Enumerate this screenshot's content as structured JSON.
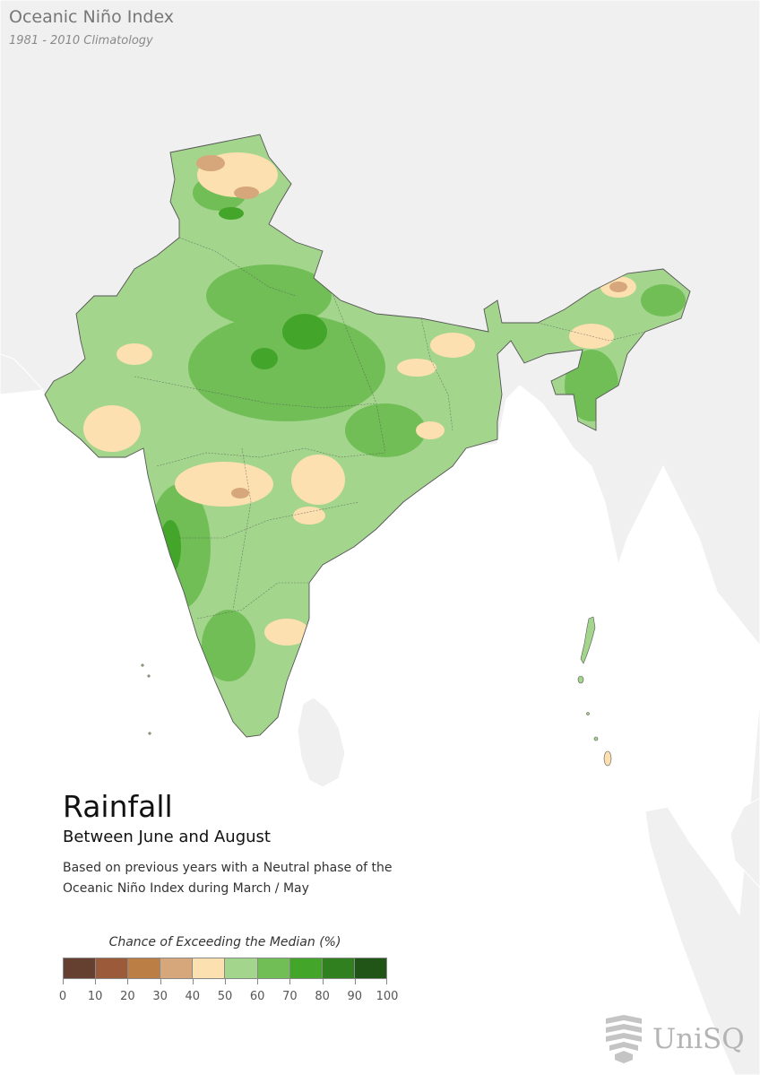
{
  "header": {
    "title": "Oceanic Niño Index",
    "subtitle": "1981 - 2010 Climatology"
  },
  "main": {
    "title": "Rainfall",
    "subtitle": "Between June and August",
    "description_lines": [
      "Based on previous years with a Neutral phase of the",
      "Oceanic Niño Index during March / May"
    ]
  },
  "legend": {
    "title": "Chance of Exceeding the Median (%)",
    "colors": [
      "#654031",
      "#9b5a3a",
      "#bb7f46",
      "#d6a77a",
      "#fde0b0",
      "#a3d58d",
      "#71be57",
      "#43a52a",
      "#31801f",
      "#205517"
    ],
    "ticks": [
      "0",
      "10",
      "20",
      "30",
      "40",
      "50",
      "60",
      "70",
      "80",
      "90",
      "100"
    ]
  },
  "map_colors": {
    "land_neighbor": "#f0f0f0",
    "ocean": "#ffffff",
    "base_fill": "#a3d58d",
    "boundary": "#555555"
  },
  "logo": {
    "text": "UniSQ",
    "icon": "unisq-logo-icon"
  }
}
